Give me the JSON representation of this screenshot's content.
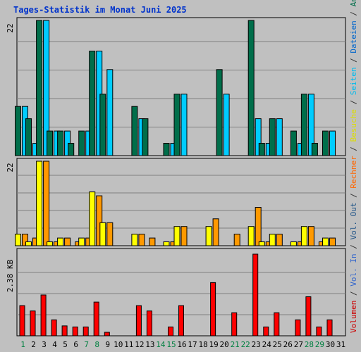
{
  "chart_data": [
    {
      "type": "bar",
      "title": "Tages-Statistik im Monat Juni 2025",
      "categories": [
        "1",
        "2",
        "3",
        "4",
        "5",
        "6",
        "7",
        "8",
        "9",
        "10",
        "11",
        "12",
        "13",
        "14",
        "15",
        "16",
        "17",
        "18",
        "19",
        "20",
        "21",
        "22",
        "23",
        "24",
        "25",
        "26",
        "27",
        "28",
        "29",
        "30",
        "31"
      ],
      "weekend_days": [
        "1",
        "7",
        "8",
        "14",
        "15",
        "21",
        "22",
        "28",
        "29"
      ],
      "ymax_label": "22",
      "ylim": [
        0,
        22
      ],
      "series": [
        {
          "name": "Anfragen",
          "color": "#006e4a",
          "values": [
            8,
            6,
            22,
            4,
            4,
            2,
            4,
            17,
            10,
            0,
            0,
            8,
            6,
            0,
            2,
            10,
            0,
            0,
            0,
            14,
            0,
            0,
            22,
            2,
            6,
            0,
            4,
            10,
            2,
            4,
            0
          ]
        },
        {
          "name": "Dateien",
          "color": "#00ccff",
          "values": [
            8,
            2,
            22,
            4,
            4,
            0,
            4,
            17,
            14,
            0,
            0,
            6,
            0,
            0,
            2,
            10,
            0,
            0,
            0,
            10,
            0,
            0,
            6,
            2,
            6,
            0,
            2,
            10,
            0,
            4,
            0
          ]
        }
      ]
    },
    {
      "type": "bar",
      "ymax_label": "22",
      "ylim": [
        0,
        22
      ],
      "series": [
        {
          "name": "Besuche",
          "color": "#ffff00",
          "values": [
            3,
            1,
            22,
            1,
            2,
            0,
            2,
            14,
            6,
            0,
            0,
            3,
            0,
            0,
            1,
            5,
            0,
            0,
            5,
            0,
            0,
            0,
            5,
            1,
            3,
            0,
            1,
            5,
            0,
            2,
            0
          ]
        },
        {
          "name": "Rechner",
          "color": "#ff9900",
          "values": [
            3,
            2,
            22,
            1,
            2,
            1,
            2,
            13,
            6,
            0,
            0,
            3,
            2,
            0,
            1,
            5,
            0,
            0,
            7,
            0,
            3,
            0,
            10,
            1,
            3,
            0,
            1,
            5,
            1,
            2,
            0
          ]
        }
      ]
    },
    {
      "type": "bar",
      "ymax_label": "2.38 KB",
      "unit": "KB",
      "ylim": [
        0,
        2.38
      ],
      "series": [
        {
          "name": "Volumen",
          "color": "#ff0000",
          "values": [
            0.85,
            0.7,
            1.15,
            0.45,
            0.28,
            0.25,
            0.25,
            0.95,
            0.1,
            0,
            0,
            0.85,
            0.7,
            0,
            0.25,
            0.85,
            0,
            0,
            1.5,
            0,
            0.65,
            0,
            2.3,
            0.25,
            0.65,
            0,
            0.45,
            1.1,
            0.25,
            0.45,
            0
          ]
        }
      ]
    }
  ],
  "legend": [
    {
      "label": "Volumen",
      "color": "#cc0000"
    },
    {
      "label": "/",
      "color": "#333333"
    },
    {
      "label": "Vol. In",
      "color": "#3366cc"
    },
    {
      "label": "/",
      "color": "#333333"
    },
    {
      "label": "Vol. Out",
      "color": "#225588"
    },
    {
      "label": "/",
      "color": "#333333"
    },
    {
      "label": "Rechner",
      "color": "#ff6600"
    },
    {
      "label": "/",
      "color": "#333333"
    },
    {
      "label": "Besuche",
      "color": "#dddd00"
    },
    {
      "label": "/",
      "color": "#333333"
    },
    {
      "label": "Seiten",
      "color": "#00bbee"
    },
    {
      "label": "/",
      "color": "#333333"
    },
    {
      "label": "Dateien",
      "color": "#0066cc"
    },
    {
      "label": "/",
      "color": "#333333"
    },
    {
      "label": "Anfragen",
      "color": "#006e4a"
    }
  ],
  "colors": {
    "background": "#c0c0c0",
    "gridline": "#808080",
    "weekend_tick": "#008040",
    "weekday_tick": "#000000"
  }
}
